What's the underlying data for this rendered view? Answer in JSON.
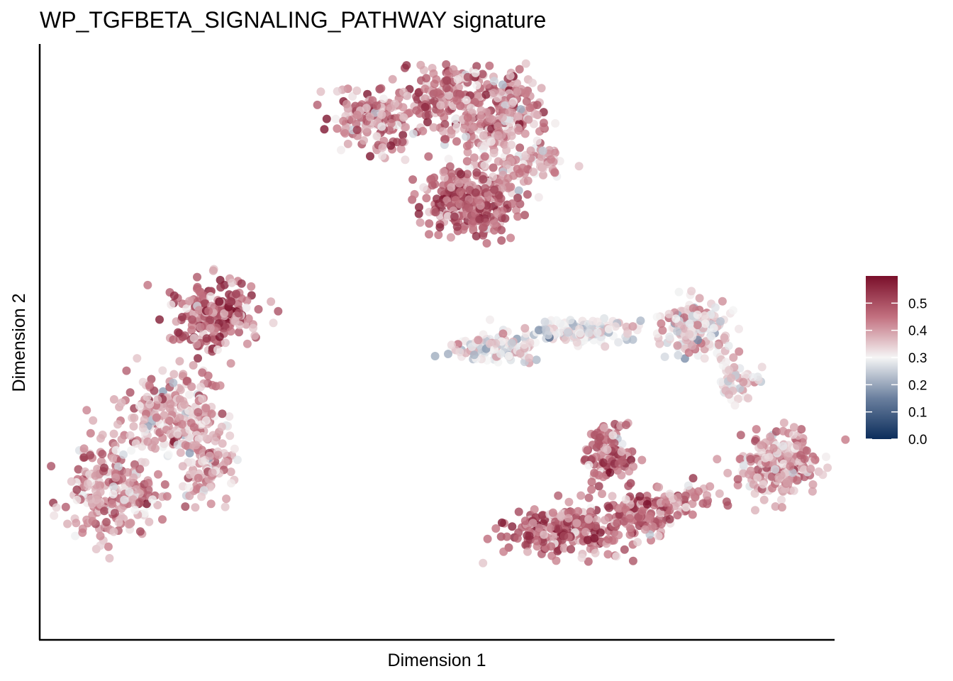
{
  "chart_data": {
    "type": "scatter",
    "title": "WP_TGFBETA_SIGNALING_PATHWAY signature",
    "xlabel": "Dimension 1",
    "ylabel": "Dimension 2",
    "x_ticks_shown": false,
    "y_ticks_shown": false,
    "grid": false,
    "xlim": [
      -10,
      10
    ],
    "ylim": [
      -9,
      9
    ],
    "color_scale": {
      "min": 0.0,
      "max": 0.6,
      "stops": [
        {
          "value": 0.0,
          "color": "#0b2d5b"
        },
        {
          "value": 0.15,
          "color": "#6a7f9e"
        },
        {
          "value": 0.3,
          "color": "#f5f5f5"
        },
        {
          "value": 0.45,
          "color": "#c2707f"
        },
        {
          "value": 0.6,
          "color": "#7a0f2a"
        }
      ],
      "ticks": [
        0.0,
        0.1,
        0.2,
        0.3,
        0.4,
        0.5
      ],
      "tick_labels": [
        "0.0",
        "0.1",
        "0.2",
        "0.3",
        "0.4",
        "0.5"
      ],
      "legend_position": "right"
    },
    "point_opacity": 0.78,
    "clusters": [
      {
        "cx": -1.5,
        "cy": 6.8,
        "sx": 1.2,
        "sy": 0.9,
        "n": 170,
        "mean": 0.44,
        "sd": 0.08
      },
      {
        "cx": 0.5,
        "cy": 7.6,
        "sx": 1.0,
        "sy": 0.8,
        "n": 160,
        "mean": 0.43,
        "sd": 0.08
      },
      {
        "cx": 1.2,
        "cy": 6.4,
        "sx": 0.9,
        "sy": 0.7,
        "n": 110,
        "mean": 0.42,
        "sd": 0.07
      },
      {
        "cx": 2.0,
        "cy": 7.2,
        "sx": 0.7,
        "sy": 0.9,
        "n": 90,
        "mean": 0.42,
        "sd": 0.08
      },
      {
        "cx": 2.3,
        "cy": 5.5,
        "sx": 0.8,
        "sy": 0.8,
        "n": 90,
        "mean": 0.36,
        "sd": 0.07
      },
      {
        "cx": 0.9,
        "cy": 4.3,
        "sx": 1.1,
        "sy": 0.9,
        "n": 290,
        "mean": 0.47,
        "sd": 0.07
      },
      {
        "cx": -5.6,
        "cy": 0.8,
        "sx": 1.0,
        "sy": 0.9,
        "n": 230,
        "mean": 0.48,
        "sd": 0.08
      },
      {
        "cx": -6.6,
        "cy": -2.2,
        "sx": 1.2,
        "sy": 1.2,
        "n": 240,
        "mean": 0.39,
        "sd": 0.07
      },
      {
        "cx": -8.2,
        "cy": -4.6,
        "sx": 1.0,
        "sy": 1.4,
        "n": 250,
        "mean": 0.4,
        "sd": 0.07
      },
      {
        "cx": -5.8,
        "cy": -3.8,
        "sx": 0.7,
        "sy": 1.0,
        "n": 90,
        "mean": 0.4,
        "sd": 0.07
      },
      {
        "cx": 1.5,
        "cy": -0.2,
        "sx": 1.0,
        "sy": 0.4,
        "n": 110,
        "mean": 0.31,
        "sd": 0.06
      },
      {
        "cx": 3.8,
        "cy": 0.3,
        "sx": 1.2,
        "sy": 0.35,
        "n": 120,
        "mean": 0.3,
        "sd": 0.06
      },
      {
        "cx": 6.6,
        "cy": 0.4,
        "sx": 0.9,
        "sy": 0.8,
        "n": 170,
        "mean": 0.33,
        "sd": 0.07
      },
      {
        "cx": 7.6,
        "cy": -1.2,
        "sx": 0.5,
        "sy": 0.7,
        "n": 50,
        "mean": 0.35,
        "sd": 0.06
      },
      {
        "cx": 8.7,
        "cy": -3.8,
        "sx": 0.9,
        "sy": 0.9,
        "n": 230,
        "mean": 0.39,
        "sd": 0.07
      },
      {
        "cx": 4.4,
        "cy": -3.4,
        "sx": 0.6,
        "sy": 0.9,
        "n": 110,
        "mean": 0.46,
        "sd": 0.07
      },
      {
        "cx": 3.2,
        "cy": -5.8,
        "sx": 1.3,
        "sy": 0.7,
        "n": 230,
        "mean": 0.47,
        "sd": 0.08
      },
      {
        "cx": 5.2,
        "cy": -5.2,
        "sx": 0.9,
        "sy": 0.6,
        "n": 120,
        "mean": 0.46,
        "sd": 0.07
      },
      {
        "cx": 6.4,
        "cy": -4.8,
        "sx": 0.9,
        "sy": 0.35,
        "n": 40,
        "mean": 0.42,
        "sd": 0.07
      }
    ],
    "random_seed": 20240517
  }
}
